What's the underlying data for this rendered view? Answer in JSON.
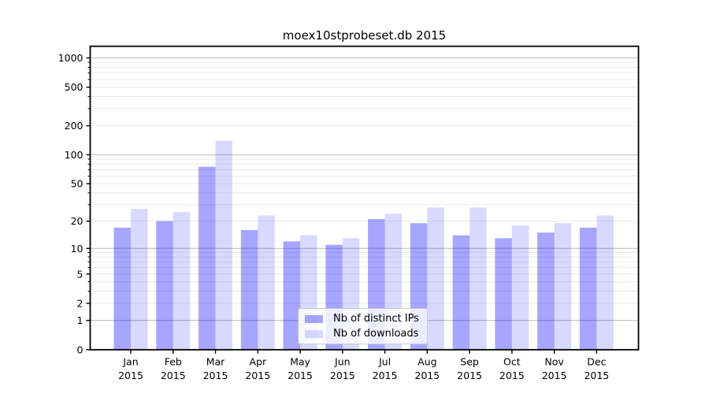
{
  "figure": {
    "background": "#ffffff"
  },
  "chart_data": {
    "type": "bar",
    "title": "moex10stprobeset.db 2015",
    "categories": [
      "Jan",
      "Feb",
      "Mar",
      "Apr",
      "May",
      "Jun",
      "Jul",
      "Aug",
      "Sep",
      "Oct",
      "Nov",
      "Dec"
    ],
    "year_label": "2015",
    "series": [
      {
        "name": "Nb of distinct IPs",
        "color": "#0000ff",
        "alpha": 0.35,
        "values": [
          17,
          20,
          75,
          16,
          12,
          11,
          21,
          19,
          14,
          13,
          15,
          17
        ]
      },
      {
        "name": "Nb of downloads",
        "color": "#0000ff",
        "alpha": 0.15,
        "values": [
          27,
          25,
          140,
          23,
          14,
          13,
          24,
          28,
          28,
          18,
          19,
          23
        ]
      }
    ],
    "yscale": "log1p",
    "yticks": [
      0,
      1,
      2,
      5,
      10,
      20,
      50,
      100,
      200,
      500,
      1000
    ],
    "ylim": [
      0,
      1310
    ],
    "grid": {
      "major_lines": [
        1,
        10,
        100,
        1000
      ],
      "minor_decades": [
        1,
        10,
        100
      ]
    },
    "legend_position": "lower-center",
    "colors": {
      "grid_major": "#bcbcbc",
      "grid_minor": "#eaeaea",
      "axis": "#000000",
      "text": "#000000"
    }
  }
}
